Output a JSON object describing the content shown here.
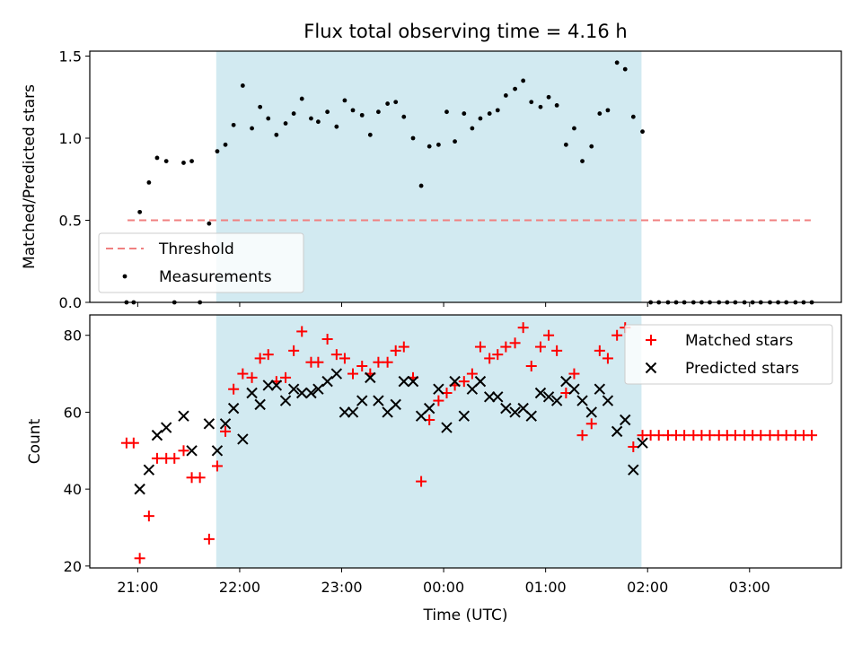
{
  "colors": {
    "shade": "#add8e6",
    "threshold": "#f08080",
    "measurement": "#000000",
    "matched": "#ff0000",
    "predicted": "#000000"
  },
  "chart_data": [
    {
      "type": "scatter",
      "title": "Flux total observing time = 4.16 h",
      "xlabel": "",
      "ylabel": "Matched/Predicted stars",
      "ylim": [
        0,
        1.53
      ],
      "yticks": [
        "0.0",
        "0.5",
        "1.0",
        "1.5"
      ],
      "ytick_values": [
        0,
        0.5,
        1.0,
        1.5
      ],
      "xlim": [
        20.53,
        27.9
      ],
      "shaded_region": [
        21.77,
        25.94
      ],
      "legend": {
        "placement": "lower-left",
        "entries": [
          "Threshold",
          "Measurements"
        ]
      },
      "threshold": {
        "name": "Threshold",
        "value": 0.5,
        "x": [
          20.9,
          27.6
        ]
      },
      "series": [
        {
          "name": "Measurements",
          "x": [
            20.89,
            20.96,
            21.02,
            21.11,
            21.19,
            21.28,
            21.36,
            21.45,
            21.53,
            21.61,
            21.7,
            21.78,
            21.86,
            21.94,
            22.03,
            22.12,
            22.2,
            22.28,
            22.36,
            22.45,
            22.53,
            22.61,
            22.7,
            22.77,
            22.86,
            22.95,
            23.03,
            23.11,
            23.2,
            23.28,
            23.36,
            23.45,
            23.53,
            23.61,
            23.7,
            23.78,
            23.86,
            23.95,
            24.03,
            24.11,
            24.2,
            24.28,
            24.36,
            24.45,
            24.53,
            24.61,
            24.7,
            24.78,
            24.86,
            24.95,
            25.03,
            25.11,
            25.2,
            25.28,
            25.36,
            25.45,
            25.53,
            25.61,
            25.7,
            25.78,
            25.86,
            25.95,
            26.03,
            26.11,
            26.2,
            26.28,
            26.36,
            26.45,
            26.53,
            26.61,
            26.7,
            26.78,
            26.86,
            26.95,
            27.03,
            27.11,
            27.2,
            27.28,
            27.36,
            27.45,
            27.53,
            27.61
          ],
          "y": [
            0.0,
            0.0,
            0.55,
            0.73,
            0.88,
            0.86,
            0.0,
            0.85,
            0.86,
            0.0,
            0.48,
            0.92,
            0.96,
            1.08,
            1.32,
            1.06,
            1.19,
            1.12,
            1.02,
            1.09,
            1.15,
            1.24,
            1.12,
            1.1,
            1.16,
            1.07,
            1.23,
            1.17,
            1.14,
            1.02,
            1.16,
            1.21,
            1.22,
            1.13,
            1.0,
            0.71,
            0.95,
            0.96,
            1.16,
            0.98,
            1.15,
            1.06,
            1.12,
            1.15,
            1.17,
            1.26,
            1.3,
            1.35,
            1.22,
            1.19,
            1.25,
            1.2,
            0.96,
            1.06,
            0.86,
            0.95,
            1.15,
            1.17,
            1.46,
            1.42,
            1.13,
            1.04,
            0.0,
            0.0,
            0.0,
            0.0,
            0.0,
            0.0,
            0.0,
            0.0,
            0.0,
            0.0,
            0.0,
            0.0,
            0.0,
            0.0,
            0.0,
            0.0,
            0.0,
            0.0,
            0.0,
            0.0
          ]
        }
      ]
    },
    {
      "type": "scatter",
      "title": "",
      "xlabel": "Time (UTC)",
      "ylabel": "Count",
      "ylim": [
        19.5,
        85.3
      ],
      "yticks": [
        "20",
        "40",
        "60",
        "80"
      ],
      "ytick_values": [
        20,
        40,
        60,
        80
      ],
      "xlim": [
        20.53,
        27.9
      ],
      "xticks": [
        "21:00",
        "22:00",
        "23:00",
        "00:00",
        "01:00",
        "02:00",
        "03:00"
      ],
      "xtick_values": [
        21,
        22,
        23,
        24,
        25,
        26,
        27
      ],
      "shaded_region": [
        21.77,
        25.94
      ],
      "legend": {
        "placement": "upper-right",
        "entries": [
          "Matched stars",
          "Predicted stars"
        ]
      },
      "series": [
        {
          "name": "Matched stars",
          "x": [
            20.89,
            20.96,
            21.02,
            21.11,
            21.19,
            21.28,
            21.36,
            21.45,
            21.53,
            21.61,
            21.7,
            21.78,
            21.86,
            21.94,
            22.03,
            22.12,
            22.2,
            22.28,
            22.36,
            22.45,
            22.53,
            22.61,
            22.7,
            22.77,
            22.86,
            22.95,
            23.03,
            23.11,
            23.2,
            23.28,
            23.36,
            23.45,
            23.53,
            23.61,
            23.7,
            23.78,
            23.86,
            23.95,
            24.03,
            24.11,
            24.2,
            24.28,
            24.36,
            24.45,
            24.53,
            24.61,
            24.7,
            24.78,
            24.86,
            24.95,
            25.03,
            25.11,
            25.2,
            25.28,
            25.36,
            25.45,
            25.53,
            25.61,
            25.7,
            25.78,
            25.86,
            25.95,
            26.03,
            26.11,
            26.2,
            26.28,
            26.36,
            26.45,
            26.53,
            26.61,
            26.7,
            26.78,
            26.86,
            26.95,
            27.03,
            27.11,
            27.2,
            27.28,
            27.36,
            27.45,
            27.53,
            27.61
          ],
          "y": [
            52,
            52,
            22,
            33,
            48,
            48,
            48,
            50,
            43,
            43,
            27,
            46,
            55,
            66,
            70,
            69,
            74,
            75,
            68,
            69,
            76,
            81,
            73,
            73,
            79,
            75,
            74,
            70,
            72,
            70,
            73,
            73,
            76,
            77,
            69,
            42,
            58,
            63,
            65,
            67,
            68,
            70,
            77,
            74,
            75,
            77,
            78,
            82,
            72,
            77,
            80,
            76,
            65,
            70,
            54,
            57,
            76,
            74,
            80,
            82,
            51,
            54,
            54,
            54,
            54,
            54,
            54,
            54,
            54,
            54,
            54,
            54,
            54,
            54,
            54,
            54,
            54,
            54,
            54,
            54,
            54,
            54
          ]
        },
        {
          "name": "Predicted stars",
          "x": [
            21.02,
            21.11,
            21.19,
            21.28,
            21.45,
            21.53,
            21.7,
            21.78,
            21.86,
            21.94,
            22.03,
            22.12,
            22.2,
            22.28,
            22.36,
            22.45,
            22.53,
            22.61,
            22.7,
            22.77,
            22.86,
            22.95,
            23.03,
            23.11,
            23.2,
            23.28,
            23.36,
            23.45,
            23.53,
            23.61,
            23.7,
            23.78,
            23.86,
            23.95,
            24.03,
            24.11,
            24.2,
            24.28,
            24.36,
            24.45,
            24.53,
            24.61,
            24.7,
            24.78,
            24.86,
            24.95,
            25.03,
            25.11,
            25.2,
            25.28,
            25.36,
            25.45,
            25.53,
            25.61,
            25.7,
            25.78,
            25.86,
            25.95
          ],
          "y": [
            40,
            45,
            54,
            56,
            59,
            50,
            57,
            50,
            57,
            61,
            53,
            65,
            62,
            67,
            67,
            63,
            66,
            65,
            65,
            66,
            68,
            70,
            60,
            60,
            63,
            69,
            63,
            60,
            62,
            68,
            68,
            59,
            61,
            66,
            56,
            68,
            59,
            66,
            68,
            64,
            64,
            61,
            60,
            61,
            59,
            65,
            64,
            63,
            68,
            66,
            63,
            60,
            66,
            63,
            55,
            58,
            45,
            52
          ]
        }
      ]
    }
  ]
}
